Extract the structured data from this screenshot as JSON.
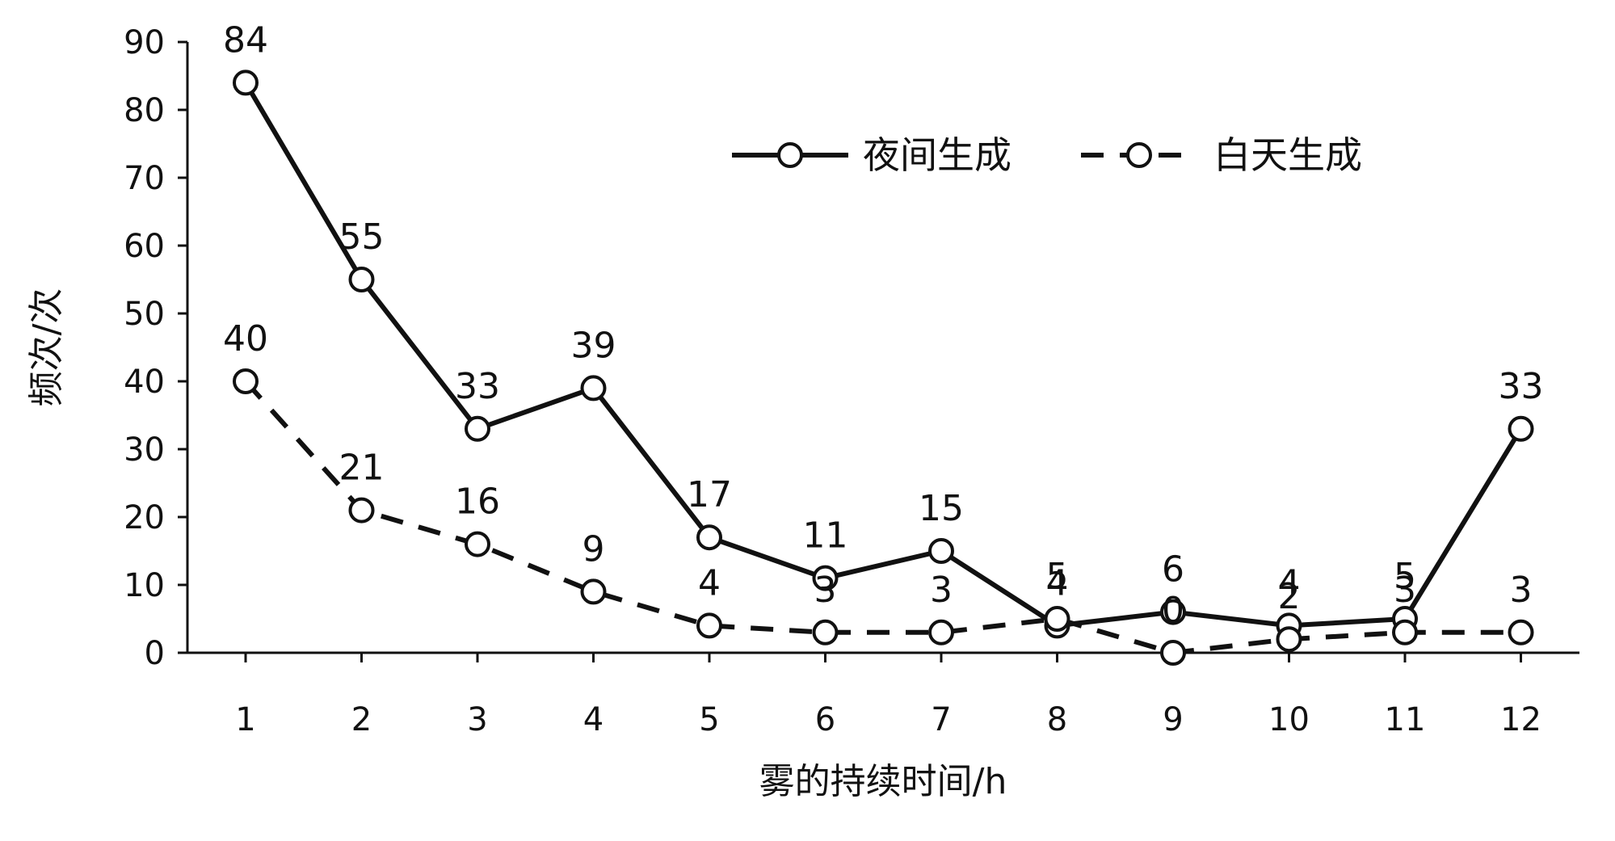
{
  "chart_data": {
    "type": "line",
    "title": "",
    "xlabel": "雾的持续时间/h",
    "ylabel": "频次/次",
    "ylim": [
      0,
      90
    ],
    "yticks": [
      0,
      10,
      20,
      30,
      40,
      50,
      60,
      70,
      80,
      90
    ],
    "categories": [
      "1",
      "2",
      "3",
      "4",
      "5",
      "6",
      "7",
      "8",
      "9",
      "10",
      "11",
      "12"
    ],
    "series": [
      {
        "name": "夜间生成",
        "line_style": "solid",
        "color": "#111111",
        "values": [
          84,
          55,
          33,
          39,
          17,
          11,
          15,
          4,
          6,
          4,
          5,
          33
        ]
      },
      {
        "name": "白天生成",
        "line_style": "dashed",
        "color": "#111111",
        "values": [
          40,
          21,
          16,
          9,
          4,
          3,
          3,
          5,
          0,
          2,
          3,
          3
        ]
      }
    ],
    "grid": false,
    "legend_position": "top-right",
    "marker": "open-circle"
  }
}
